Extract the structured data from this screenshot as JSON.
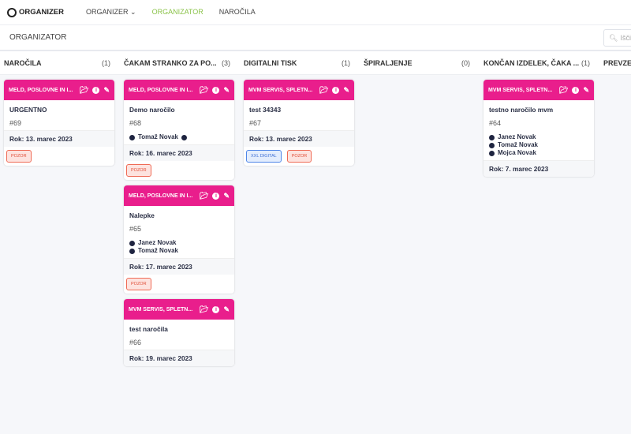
{
  "nav": {
    "logo": "ORGANIZER",
    "items": [
      {
        "label": "ORGANIZER",
        "dropdown": true
      },
      {
        "label": "ORGANIZATOR",
        "active": true
      },
      {
        "label": "NAROČILA"
      }
    ]
  },
  "subheader": {
    "title": "ORGANIZATOR",
    "search_placeholder": "Išči"
  },
  "colors": {
    "accent": "#e91e8c",
    "active_nav": "#8bc34a"
  },
  "columns": [
    {
      "title": "NAROČILA",
      "count": "(1)",
      "cards": [
        {
          "client": "MELD, POSLOVNE IN I...",
          "title": "URGENTNO",
          "number": "#69",
          "people": [],
          "deadline": "Rok: 13. marec 2023",
          "tags": [
            {
              "label": "POZOR",
              "type": "red"
            }
          ]
        }
      ]
    },
    {
      "title": "ČAKAM STRANKO ZA PO...",
      "count": "(3)",
      "cards": [
        {
          "client": "MELD, POSLOVNE IN I...",
          "title": "Demo naročilo",
          "number": "#68",
          "people": [
            "Tomaž Novak"
          ],
          "deadline": "Rok: 16. marec 2023",
          "tags": [
            {
              "label": "POZOR",
              "type": "red"
            }
          ]
        },
        {
          "client": "MELD, POSLOVNE IN I...",
          "title": "Nalepke",
          "number": "#65",
          "people": [
            "Janez Novak",
            "Tomaž Novak"
          ],
          "deadline": "Rok: 17. marec 2023",
          "tags": [
            {
              "label": "POZOR",
              "type": "red"
            }
          ]
        },
        {
          "client": "MVM SERVIS, SPLETN...",
          "title": "test naročila",
          "number": "#66",
          "people": [],
          "deadline": "Rok: 19. marec 2023",
          "tags": []
        }
      ]
    },
    {
      "title": "DIGITALNI TISK",
      "count": "(1)",
      "cards": [
        {
          "client": "MVM SERVIS, SPLETN...",
          "title": "test 34343",
          "number": "#67",
          "people": [],
          "deadline": "Rok: 13. marec 2023",
          "tags": [
            {
              "label": "XXL DIGITAL",
              "type": "blue"
            },
            {
              "label": "POZOR",
              "type": "red"
            }
          ]
        }
      ]
    },
    {
      "title": "ŠPIRALJENJE",
      "count": "(0)",
      "cards": []
    },
    {
      "title": "KONČAN IZDELEK, ČAKA ...",
      "count": "(1)",
      "cards": [
        {
          "client": "MVM SERVIS, SPLETN...",
          "title": "testno naročilo mvm",
          "number": "#64",
          "people": [
            "Janez Novak",
            "Tomaž Novak",
            "Mojca Novak"
          ],
          "deadline": "Rok: 7. marec 2023",
          "tags": []
        }
      ]
    },
    {
      "title": "PREVZET",
      "count": "",
      "cards": []
    }
  ]
}
